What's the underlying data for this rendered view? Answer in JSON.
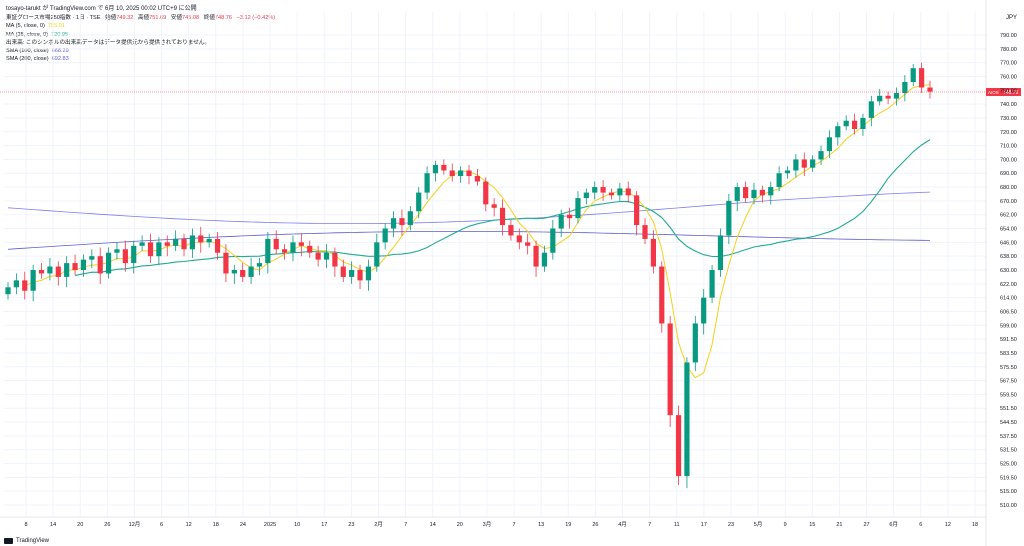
{
  "page": {
    "publisher_line": "tosayo-tarukt が TradingView.com で 6月 10, 2025 00:02 UTC+9 に公開",
    "footer_text": "TradingView"
  },
  "header": {
    "symbol_line": "東証グロース市場250指数 · 1日 · TSE",
    "ohlc": [
      {
        "label": "始値",
        "value": "749.32"
      },
      {
        "label": "高値",
        "value": "751.69"
      },
      {
        "label": "安値",
        "value": "745.08"
      },
      {
        "label": "終値",
        "value": "748.76"
      }
    ],
    "change": "−3.12 (−0.42%)"
  },
  "indicators": [
    {
      "label": "MA (5, close, 0)",
      "value": "755.01",
      "color": "#f5d11c"
    },
    {
      "label": "MA (25, close, 0)",
      "value": "720.95",
      "color": "#22ab94"
    },
    {
      "label": "出来高: このシンボルの出来高データはデータ提供元から提供されておりません。",
      "value": "",
      "color": "#131722"
    },
    {
      "label": "SMA (100, close)",
      "value": "668.29",
      "color": "#7b7ef0"
    },
    {
      "label": "SMA (200, close)",
      "value": "692.83",
      "color": "#5d5fcf"
    }
  ],
  "price_axis": {
    "currency": "JPY",
    "ticks": [
      "790.00",
      "780.00",
      "770.00",
      "760.00",
      "750.00",
      "740.00",
      "730.00",
      "720.00",
      "710.00",
      "700.00",
      "690.00",
      "680.00",
      "670.00",
      "662.00",
      "654.00",
      "646.00",
      "638.00",
      "630.00",
      "622.00",
      "614.00",
      "606.50",
      "599.00",
      "591.50",
      "583.50",
      "575.50",
      "567.50",
      "559.50",
      "551.50",
      "544.50",
      "537.50",
      "531.50",
      "525.00",
      "519.50",
      "515.00",
      "510.00"
    ],
    "last_tag_left": "AIOS",
    "last_tag_value": "748.76"
  },
  "time_axis": {
    "labels": [
      "8",
      "14",
      "20",
      "26",
      "12月",
      "6",
      "12",
      "18",
      "24",
      "2025",
      "10",
      "17",
      "23",
      "2月",
      "7",
      "14",
      "20",
      "3月",
      "7",
      "13",
      "19",
      "26",
      "4月",
      "7",
      "11",
      "17",
      "23",
      "5月",
      "9",
      "15",
      "21",
      "27",
      "6月",
      "6",
      "12",
      "18"
    ]
  },
  "chart_data": {
    "type": "candlestick",
    "title": "東証グロース市場250指数 · 1日 · TSE",
    "currency": "JPY",
    "last_price": 748.76,
    "up_color": "#089981",
    "down_color": "#f23645",
    "x_labels": [
      "8",
      "14",
      "20",
      "26",
      "12月",
      "6",
      "12",
      "18",
      "24",
      "2025",
      "10",
      "17",
      "23",
      "2月",
      "7",
      "14",
      "20",
      "3月",
      "7",
      "13",
      "19",
      "26",
      "4月",
      "7",
      "11",
      "17",
      "23",
      "5月",
      "9",
      "15",
      "21",
      "27",
      "6月",
      "6",
      "12",
      "18"
    ],
    "candles_close": [
      620,
      624,
      618,
      630,
      628,
      632,
      626,
      634,
      630,
      636,
      638,
      628,
      640,
      642,
      634,
      644,
      646,
      638,
      646,
      644,
      648,
      642,
      650,
      646,
      648,
      640,
      628,
      630,
      626,
      632,
      634,
      648,
      642,
      640,
      646,
      644,
      640,
      636,
      640,
      632,
      626,
      630,
      624,
      632,
      646,
      654,
      660,
      656,
      664,
      676,
      690,
      696,
      692,
      688,
      692,
      688,
      684,
      668,
      666,
      656,
      650,
      646,
      644,
      632,
      640,
      654,
      662,
      660,
      672,
      676,
      680,
      676,
      674,
      679,
      674,
      656,
      648,
      632,
      600,
      548,
      520,
      578,
      600,
      614,
      630,
      650,
      670,
      680,
      672,
      678,
      674,
      680,
      690,
      692,
      700,
      694,
      700,
      706,
      716,
      724,
      728,
      722,
      730,
      742,
      746,
      744,
      748,
      756,
      766,
      752,
      749
    ],
    "ma5_final": 755.01,
    "ma25_final": 720.95,
    "sma100_final": 668.29,
    "sma200_final": 692.83,
    "ma5_color": "#f5d11c",
    "ma25_color": "#22ab94",
    "sma100_color": "#7b7ef0",
    "sma200_color": "#5d5fcf",
    "grid": true
  }
}
